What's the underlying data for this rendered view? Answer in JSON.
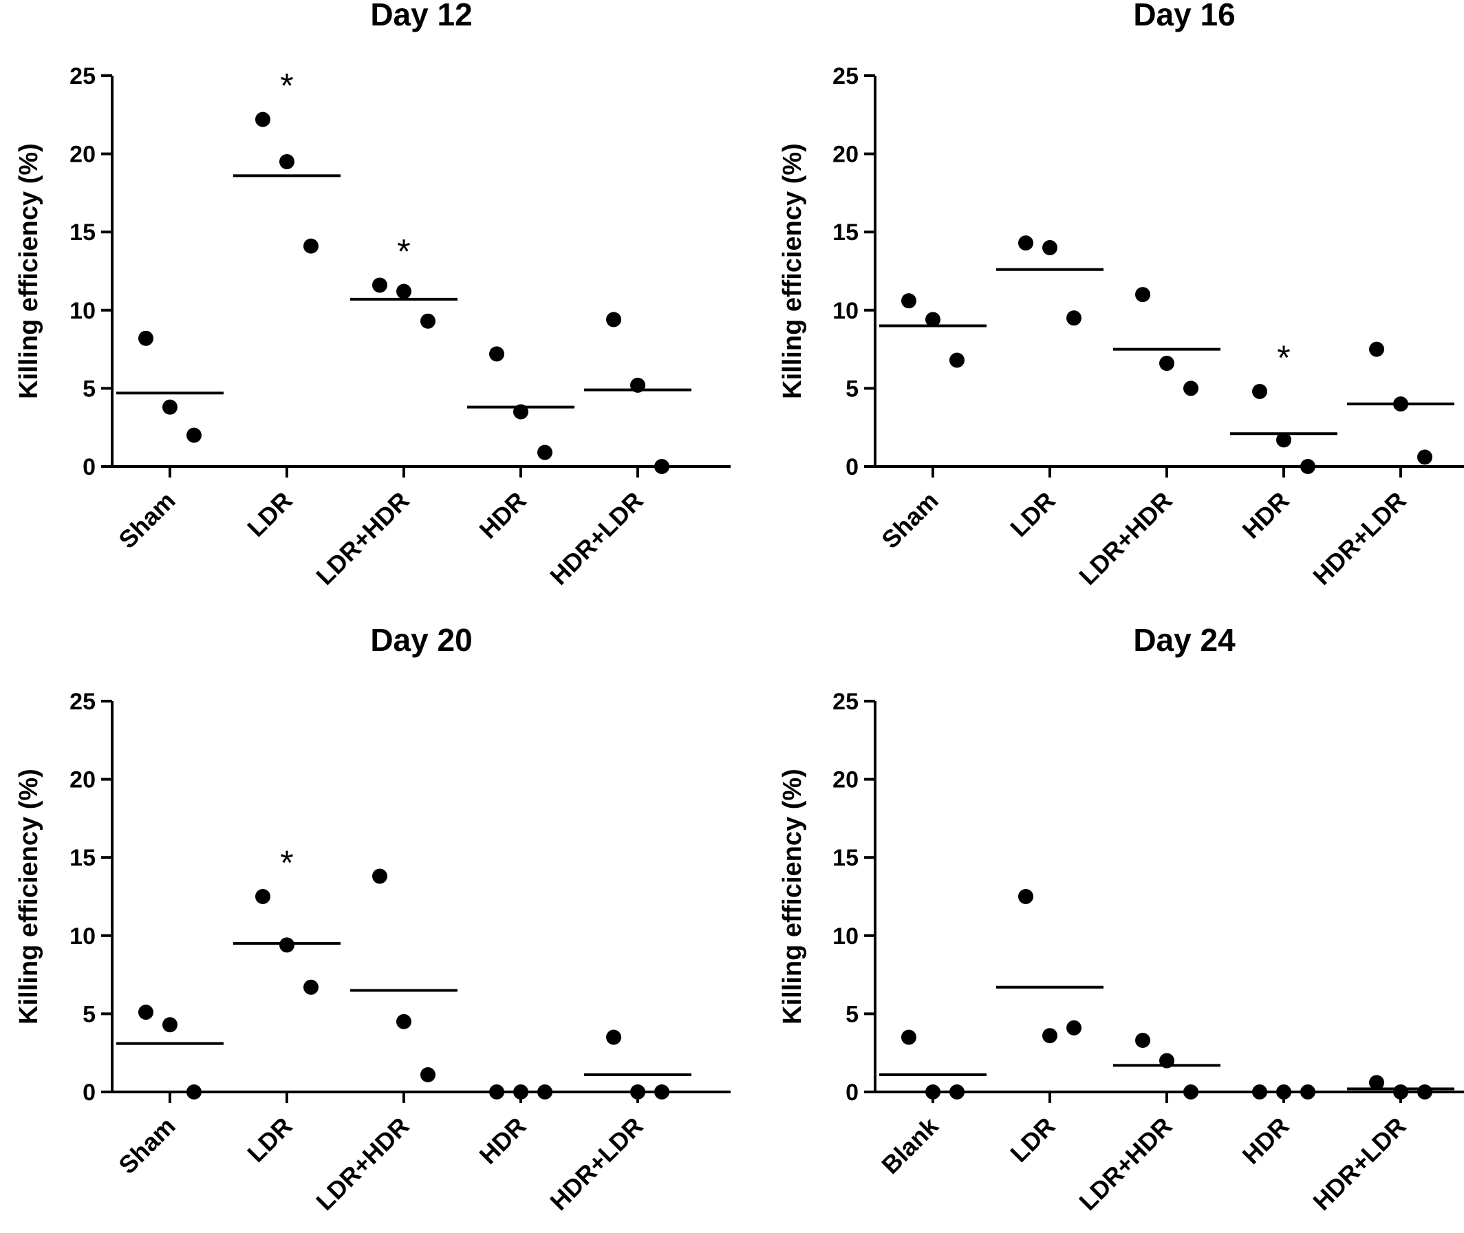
{
  "chart_data": [
    {
      "type": "scatter",
      "title": "Day 12",
      "ylabel": "Killing efficiency (%)",
      "ylim": [
        0,
        25
      ],
      "yticks": [
        0,
        5,
        10,
        15,
        20,
        25
      ],
      "categories": [
        "Sham",
        "LDR",
        "LDR+HDR",
        "HDR",
        "HDR+LDR"
      ],
      "points": [
        [
          8.2,
          3.8,
          2.0
        ],
        [
          22.2,
          19.5,
          14.1
        ],
        [
          11.6,
          11.2,
          9.3
        ],
        [
          7.2,
          3.5,
          0.9
        ],
        [
          9.4,
          5.2,
          0.0
        ]
      ],
      "means": [
        4.7,
        18.6,
        10.7,
        3.8,
        4.9
      ],
      "significance": [
        "",
        "*",
        "*",
        "",
        ""
      ]
    },
    {
      "type": "scatter",
      "title": "Day 16",
      "ylabel": "Killing efficiency (%)",
      "ylim": [
        0,
        25
      ],
      "yticks": [
        0,
        5,
        10,
        15,
        20,
        25
      ],
      "categories": [
        "Sham",
        "LDR",
        "LDR+HDR",
        "HDR",
        "HDR+LDR"
      ],
      "points": [
        [
          10.6,
          9.4,
          6.8
        ],
        [
          14.3,
          14.0,
          9.5
        ],
        [
          11.0,
          6.6,
          5.0
        ],
        [
          4.8,
          1.7,
          0.0
        ],
        [
          7.5,
          4.0,
          0.6
        ]
      ],
      "means": [
        9.0,
        12.6,
        7.5,
        2.1,
        4.0
      ],
      "significance": [
        "",
        "",
        "",
        "*",
        ""
      ]
    },
    {
      "type": "scatter",
      "title": "Day 20",
      "ylabel": "Killing efficiency (%)",
      "ylim": [
        0,
        25
      ],
      "yticks": [
        0,
        5,
        10,
        15,
        20,
        25
      ],
      "categories": [
        "Sham",
        "LDR",
        "LDR+HDR",
        "HDR",
        "HDR+LDR"
      ],
      "points": [
        [
          5.1,
          4.3,
          0.0
        ],
        [
          12.5,
          9.4,
          6.7
        ],
        [
          13.8,
          4.5,
          1.1
        ],
        [
          0.0,
          0.0,
          0.0
        ],
        [
          3.5,
          0.0,
          0.0
        ]
      ],
      "means": [
        3.1,
        9.5,
        6.5,
        0.0,
        1.1
      ],
      "significance": [
        "",
        "*",
        "",
        "",
        ""
      ]
    },
    {
      "type": "scatter",
      "title": "Day 24",
      "ylabel": "Killing efficiency (%)",
      "ylim": [
        0,
        25
      ],
      "yticks": [
        0,
        5,
        10,
        15,
        20,
        25
      ],
      "categories": [
        "Blank",
        "LDR",
        "LDR+HDR",
        "HDR",
        "HDR+LDR"
      ],
      "points": [
        [
          3.5,
          0.0,
          0.0
        ],
        [
          12.5,
          3.6,
          4.1
        ],
        [
          3.3,
          2.0,
          0.0
        ],
        [
          0.0,
          0.0,
          0.0
        ],
        [
          0.6,
          0.0,
          0.0
        ]
      ],
      "means": [
        1.1,
        6.7,
        1.7,
        0.0,
        0.2
      ],
      "significance": [
        "",
        "",
        "",
        "",
        ""
      ]
    }
  ]
}
